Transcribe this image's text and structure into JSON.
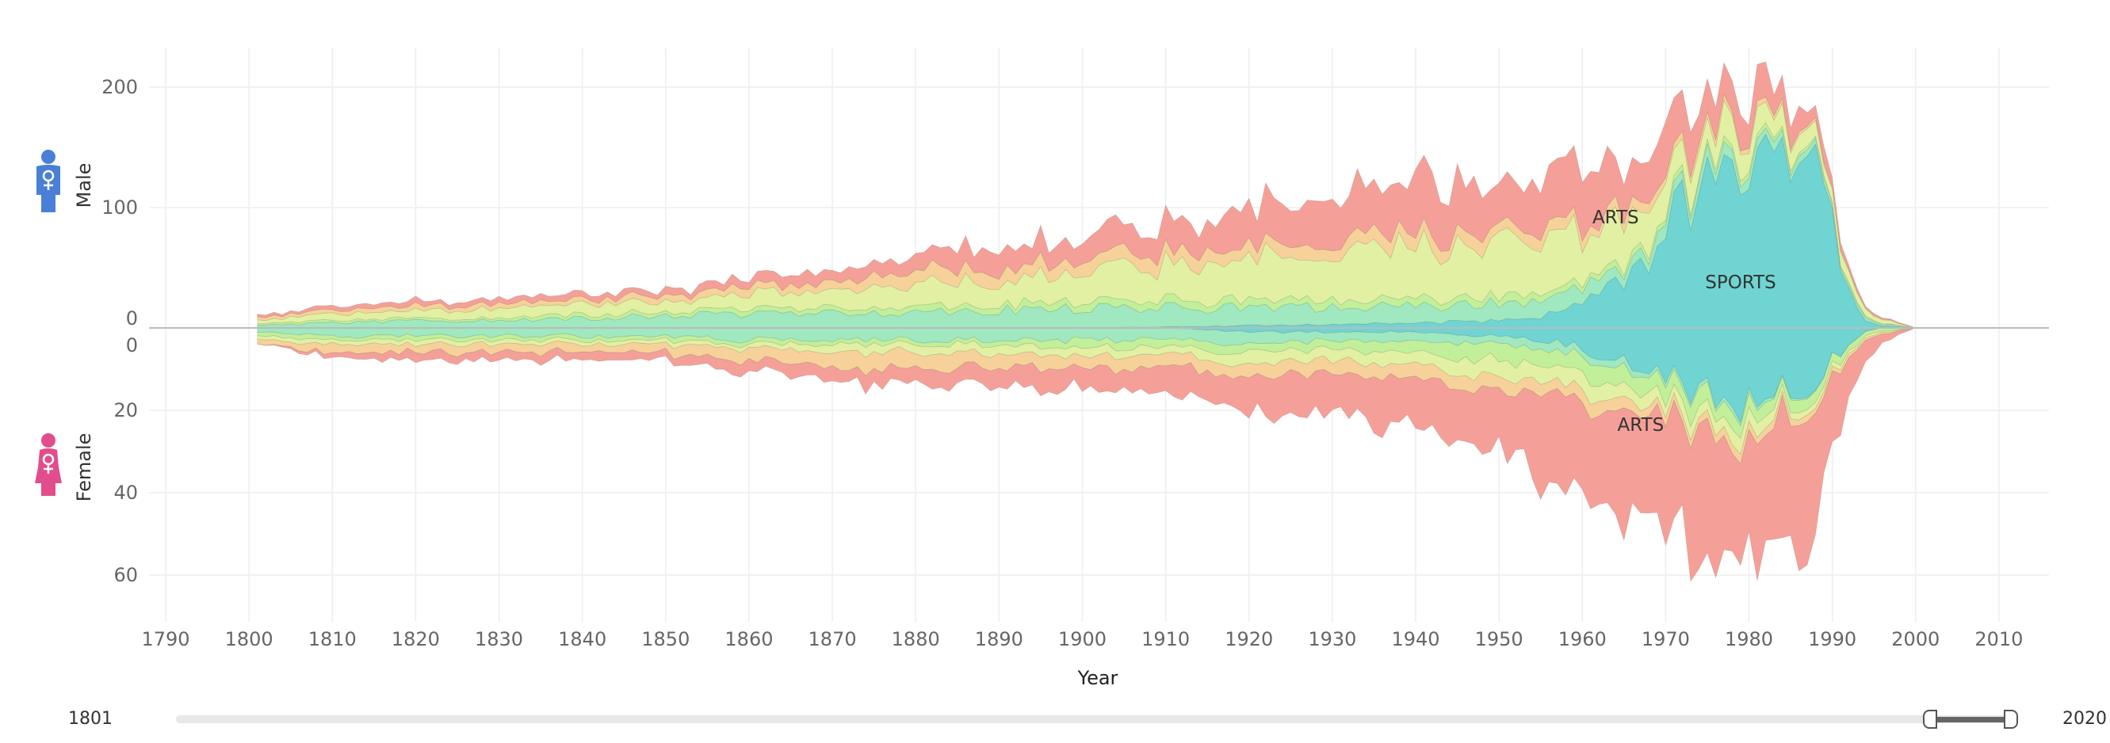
{
  "chart_data": {
    "type": "area",
    "xlabel": "Year",
    "x_ticks": [
      1790,
      1800,
      1810,
      1820,
      1830,
      1840,
      1850,
      1860,
      1870,
      1880,
      1890,
      1900,
      1910,
      1920,
      1930,
      1940,
      1950,
      1960,
      1970,
      1980,
      1990,
      2000,
      2010
    ],
    "xlim": [
      1788,
      2016
    ],
    "panels": [
      {
        "name": "Male",
        "ylim": [
          0,
          230
        ],
        "y_ticks": [
          0,
          100,
          200
        ],
        "direction": "up"
      },
      {
        "name": "Female",
        "ylim": [
          0,
          70
        ],
        "y_ticks": [
          0,
          20,
          40,
          60
        ],
        "direction": "down"
      }
    ],
    "annotations": [
      {
        "text": "ARTS",
        "panel": "Male",
        "x": 1964,
        "y": 87
      },
      {
        "text": "SPORTS",
        "panel": "Male",
        "x": 1979,
        "y": 33
      },
      {
        "text": "ARTS",
        "panel": "Female",
        "x": 1967,
        "y": 25
      }
    ],
    "grid": true,
    "series": [
      {
        "color": "#6fd4d2",
        "x": [
          1801,
          1810,
          1820,
          1830,
          1840,
          1850,
          1860,
          1870,
          1880,
          1890,
          1900,
          1910,
          1920,
          1930,
          1940,
          1950,
          1955,
          1960,
          1965,
          1968,
          1970,
          1972,
          1975,
          1978,
          1980,
          1982,
          1984,
          1986,
          1988,
          1990,
          1992,
          1994,
          1996,
          2000
        ],
        "male": [
          0,
          0,
          0,
          0,
          0,
          0,
          0,
          0,
          0,
          0,
          0,
          1,
          2,
          3,
          4,
          6,
          10,
          20,
          40,
          55,
          80,
          100,
          110,
          130,
          140,
          150,
          165,
          160,
          130,
          80,
          30,
          8,
          2,
          0
        ],
        "female": [
          0,
          0,
          0,
          0,
          0,
          0,
          0,
          0,
          0,
          0,
          0,
          0,
          1,
          1,
          1,
          2,
          3,
          5,
          8,
          10,
          12,
          14,
          16,
          18,
          20,
          16,
          14,
          16,
          12,
          8,
          4,
          1,
          0,
          0
        ]
      },
      {
        "color": "#9fe8c0",
        "x": [
          1801,
          1810,
          1820,
          1830,
          1840,
          1850,
          1860,
          1870,
          1880,
          1890,
          1900,
          1910,
          1920,
          1930,
          1940,
          1950,
          1960,
          1970,
          1980,
          1990,
          2000
        ],
        "male": [
          2,
          4,
          6,
          6,
          8,
          10,
          12,
          12,
          14,
          15,
          16,
          16,
          15,
          14,
          14,
          14,
          12,
          10,
          8,
          4,
          0
        ],
        "female": [
          1,
          2,
          2,
          2,
          2,
          2,
          3,
          3,
          3,
          3,
          3,
          3,
          3,
          2,
          2,
          2,
          2,
          1,
          1,
          0,
          0
        ]
      },
      {
        "color": "#c2ef9a",
        "x": [
          1801,
          1810,
          1820,
          1830,
          1840,
          1850,
          1860,
          1870,
          1880,
          1890,
          1900,
          1910,
          1920,
          1930,
          1940,
          1950,
          1960,
          1970,
          1980,
          1990,
          2000
        ],
        "male": [
          1,
          2,
          2,
          2,
          3,
          3,
          4,
          4,
          5,
          5,
          6,
          6,
          6,
          6,
          6,
          6,
          5,
          4,
          4,
          2,
          0
        ],
        "female": [
          1,
          1,
          1,
          1,
          1,
          1,
          1,
          1,
          1,
          1,
          2,
          2,
          2,
          2,
          3,
          4,
          4,
          4,
          3,
          2,
          0
        ]
      },
      {
        "color": "#e2f0a4",
        "x": [
          1801,
          1810,
          1820,
          1830,
          1840,
          1850,
          1860,
          1870,
          1880,
          1890,
          1900,
          1910,
          1920,
          1930,
          1940,
          1950,
          1960,
          1970,
          1980,
          1990,
          2000
        ],
        "male": [
          3,
          5,
          6,
          7,
          8,
          9,
          12,
          14,
          18,
          22,
          25,
          28,
          35,
          40,
          45,
          50,
          40,
          30,
          20,
          10,
          0
        ],
        "female": [
          1,
          1,
          1,
          1,
          1,
          1,
          1,
          2,
          2,
          2,
          2,
          2,
          3,
          3,
          3,
          4,
          4,
          3,
          3,
          1,
          0
        ]
      },
      {
        "color": "#f6d29a",
        "x": [
          1801,
          1810,
          1820,
          1830,
          1840,
          1850,
          1860,
          1870,
          1880,
          1890,
          1900,
          1910,
          1920,
          1930,
          1940,
          1950,
          1960,
          1970,
          1980,
          1990,
          2000
        ],
        "male": [
          2,
          3,
          4,
          4,
          4,
          5,
          6,
          7,
          10,
          10,
          10,
          10,
          10,
          10,
          10,
          10,
          8,
          6,
          4,
          2,
          0
        ],
        "female": [
          1,
          2,
          2,
          2,
          2,
          2,
          3,
          4,
          4,
          3,
          3,
          3,
          3,
          3,
          3,
          3,
          3,
          2,
          2,
          1,
          0
        ]
      },
      {
        "color": "#f4a098",
        "x": [
          1801,
          1810,
          1820,
          1830,
          1840,
          1850,
          1860,
          1870,
          1880,
          1890,
          1900,
          1910,
          1920,
          1930,
          1940,
          1950,
          1955,
          1960,
          1965,
          1970,
          1975,
          1980,
          1985,
          1990,
          1993,
          1996,
          2000
        ],
        "male": [
          2,
          3,
          4,
          4,
          5,
          5,
          8,
          10,
          15,
          18,
          20,
          22,
          30,
          40,
          45,
          45,
          50,
          40,
          40,
          38,
          30,
          25,
          20,
          10,
          2,
          1,
          0
        ],
        "female": [
          0,
          1,
          2,
          2,
          2,
          2,
          3,
          3,
          4,
          4,
          5,
          6,
          8,
          10,
          12,
          16,
          20,
          22,
          25,
          28,
          30,
          32,
          30,
          22,
          6,
          2,
          0
        ]
      }
    ]
  },
  "axes": {
    "male_label": "Male",
    "female_label": "Female",
    "icons": {
      "male": "male-person-icon",
      "female": "female-person-icon"
    },
    "male_color": "#4a7fd8",
    "female_color": "#e24d8c"
  },
  "range_slider": {
    "min_label": "1801",
    "max_label": "2020"
  }
}
